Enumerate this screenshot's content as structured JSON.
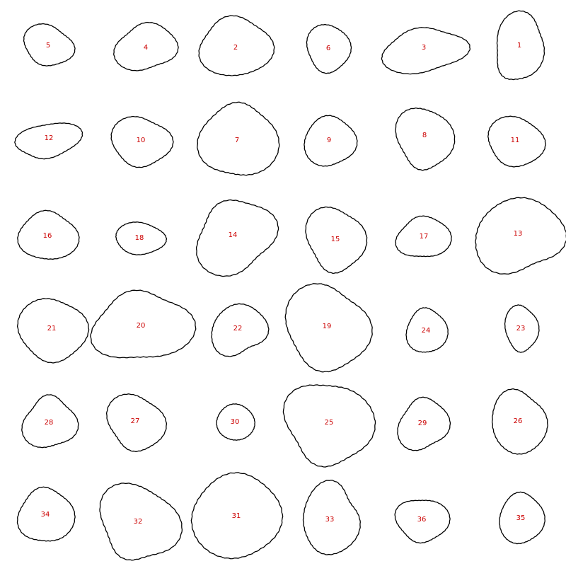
{
  "colors": {
    "background": "#ffffff",
    "outline": "#000000",
    "label": "#cc0000"
  },
  "blobs": [
    {
      "label": "5"
    },
    {
      "label": "4"
    },
    {
      "label": "2"
    },
    {
      "label": "6"
    },
    {
      "label": "3"
    },
    {
      "label": "1"
    },
    {
      "label": "12"
    },
    {
      "label": "10"
    },
    {
      "label": "7"
    },
    {
      "label": "9"
    },
    {
      "label": "8"
    },
    {
      "label": "11"
    },
    {
      "label": "16"
    },
    {
      "label": "18"
    },
    {
      "label": "14"
    },
    {
      "label": "15"
    },
    {
      "label": "17"
    },
    {
      "label": "13"
    },
    {
      "label": "21"
    },
    {
      "label": "20"
    },
    {
      "label": "22"
    },
    {
      "label": "19"
    },
    {
      "label": "24"
    },
    {
      "label": "23"
    },
    {
      "label": "28"
    },
    {
      "label": "27"
    },
    {
      "label": "30"
    },
    {
      "label": "25"
    },
    {
      "label": "29"
    },
    {
      "label": "26"
    },
    {
      "label": "34"
    },
    {
      "label": "32"
    },
    {
      "label": "31"
    },
    {
      "label": "33"
    },
    {
      "label": "36"
    },
    {
      "label": "35"
    }
  ]
}
